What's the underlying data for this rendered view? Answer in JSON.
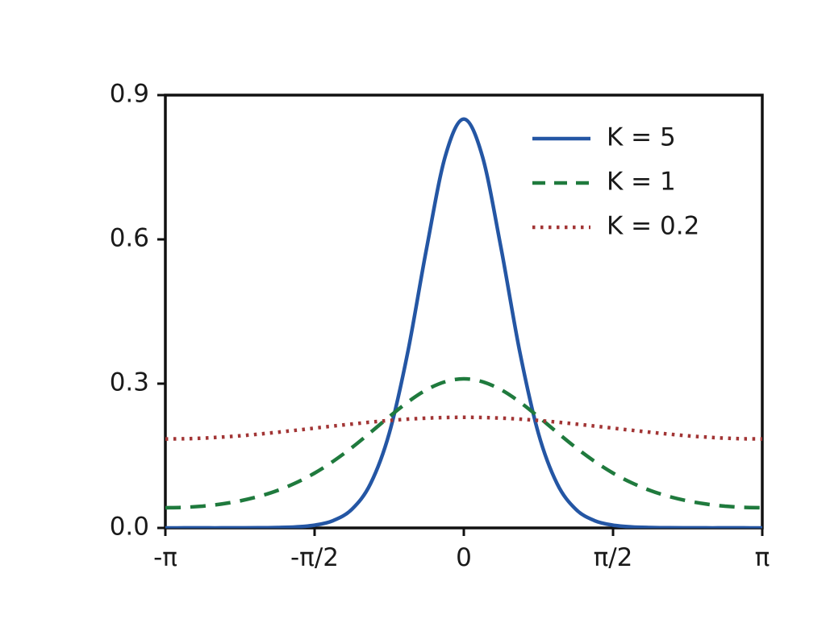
{
  "figure": {
    "background": "#ffffff",
    "axis_color": "#111111",
    "text_color": "#1a1a1a"
  },
  "chart_data": {
    "type": "line",
    "title": "",
    "xlabel": "",
    "ylabel": "",
    "xlim_over_pi": [
      -1,
      1
    ],
    "ylim": [
      0,
      0.9
    ],
    "grid": false,
    "x_tick_labels": [
      "-π",
      "-π/2",
      "0",
      "π/2",
      "π"
    ],
    "x_tick_positions_over_pi": [
      -1,
      -0.5,
      0,
      0.5,
      1
    ],
    "y_tick_labels": [
      "0.0",
      "0.3",
      "0.6",
      "0.9"
    ],
    "y_tick_values": [
      0,
      0.3,
      0.6,
      0.9
    ],
    "legend_position": "upper right",
    "x_over_pi": [
      -1,
      -0.9375,
      -0.875,
      -0.8125,
      -0.75,
      -0.6875,
      -0.625,
      -0.5625,
      -0.5,
      -0.4375,
      -0.375,
      -0.3125,
      -0.25,
      -0.1875,
      -0.125,
      -0.0625,
      0,
      0.0625,
      0.125,
      0.1875,
      0.25,
      0.3125,
      0.375,
      0.4375,
      0.5,
      0.5625,
      0.625,
      0.6875,
      0.75,
      0.8125,
      0.875,
      0.9375,
      1
    ],
    "series": [
      {
        "name": "K = 5",
        "style": "solid",
        "color": "#2456a4",
        "values": [
          0,
          0.0001,
          0.0001,
          0.0001,
          0.0002,
          0.0003,
          0.0008,
          0.0022,
          0.0057,
          0.0152,
          0.0388,
          0.0921,
          0.1965,
          0.366,
          0.5809,
          0.7722,
          0.85,
          0.7722,
          0.5809,
          0.366,
          0.1965,
          0.0921,
          0.0388,
          0.0152,
          0.0057,
          0.0022,
          0.0008,
          0.0003,
          0.0002,
          0.0001,
          0.0001,
          0.0001,
          0
        ]
      },
      {
        "name": "K = 1",
        "style": "dashed",
        "color": "#1f7a3d",
        "values": [
          0.0419,
          0.0428,
          0.0453,
          0.0496,
          0.0562,
          0.0654,
          0.0777,
          0.0938,
          0.114,
          0.1386,
          0.1671,
          0.1987,
          0.2312,
          0.2618,
          0.2872,
          0.304,
          0.31,
          0.304,
          0.2872,
          0.2618,
          0.2312,
          0.1987,
          0.1671,
          0.1386,
          0.114,
          0.0938,
          0.0777,
          0.0654,
          0.0562,
          0.0496,
          0.0453,
          0.0428,
          0.0419
        ]
      },
      {
        "name": "K = 0.2",
        "style": "dotted",
        "color": "#a23535",
        "values": [
          0.185,
          0.1854,
          0.1867,
          0.1888,
          0.1916,
          0.195,
          0.1989,
          0.2031,
          0.2075,
          0.2119,
          0.2161,
          0.22,
          0.2234,
          0.2262,
          0.2283,
          0.2296,
          0.23,
          0.2296,
          0.2283,
          0.2262,
          0.2234,
          0.22,
          0.2161,
          0.2119,
          0.2075,
          0.2031,
          0.1989,
          0.195,
          0.1916,
          0.1888,
          0.1867,
          0.1854,
          0.185
        ]
      }
    ]
  }
}
